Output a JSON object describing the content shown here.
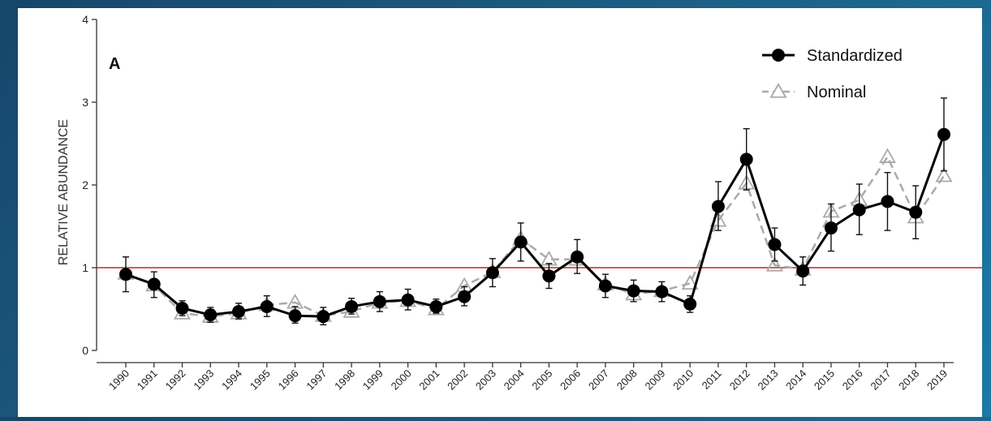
{
  "chart_data": {
    "type": "line",
    "panel_label": "A",
    "title": "",
    "xlabel": "",
    "ylabel": "RELATIVE ABUNDANCE",
    "ylim": [
      0,
      4
    ],
    "yticks": [
      "0",
      "1",
      "2",
      "3",
      "4"
    ],
    "reference_line": 1,
    "reference_line_color": "#cc2222",
    "legend_position": "top-right",
    "grid": false,
    "x": [
      "1990",
      "1991",
      "1992",
      "1993",
      "1994",
      "1995",
      "1996",
      "1997",
      "1998",
      "1999",
      "2000",
      "2001",
      "2002",
      "2003",
      "2004",
      "2005",
      "2006",
      "2007",
      "2008",
      "2009",
      "2010",
      "2011",
      "2012",
      "2013",
      "2014",
      "2015",
      "2016",
      "2017",
      "2018",
      "2019"
    ],
    "series": [
      {
        "name": "Standardized",
        "style": "solid-line-filled-circle",
        "color": "#000000",
        "values": [
          0.92,
          0.8,
          0.51,
          0.43,
          0.47,
          0.53,
          0.42,
          0.41,
          0.53,
          0.59,
          0.61,
          0.53,
          0.65,
          0.94,
          1.31,
          0.9,
          1.13,
          0.78,
          0.72,
          0.71,
          0.56,
          1.74,
          2.31,
          1.28,
          0.96,
          1.48,
          1.7,
          1.8,
          1.67,
          2.61
        ],
        "error_upper": [
          1.13,
          0.95,
          0.6,
          0.52,
          0.57,
          0.66,
          0.53,
          0.52,
          0.63,
          0.71,
          0.74,
          0.62,
          0.77,
          1.11,
          1.54,
          1.05,
          1.34,
          0.92,
          0.85,
          0.83,
          0.66,
          2.04,
          2.68,
          1.48,
          1.13,
          1.77,
          2.01,
          2.15,
          1.99,
          3.05
        ],
        "error_lower": [
          0.71,
          0.64,
          0.42,
          0.34,
          0.38,
          0.41,
          0.33,
          0.31,
          0.44,
          0.47,
          0.49,
          0.45,
          0.54,
          0.77,
          1.08,
          0.75,
          0.93,
          0.64,
          0.59,
          0.59,
          0.46,
          1.45,
          1.94,
          1.08,
          0.79,
          1.2,
          1.4,
          1.45,
          1.35,
          2.17
        ]
      },
      {
        "name": "Nominal",
        "style": "dashed-line-open-triangle",
        "color": "#aaaaaa",
        "values": [
          0.93,
          0.79,
          0.45,
          0.41,
          0.45,
          0.55,
          0.58,
          0.42,
          0.47,
          0.58,
          0.6,
          0.5,
          0.78,
          0.95,
          1.35,
          1.1,
          1.1,
          0.8,
          0.68,
          0.72,
          0.81,
          1.57,
          2.02,
          1.03,
          0.98,
          1.68,
          1.82,
          2.34,
          1.61,
          2.11
        ]
      }
    ]
  }
}
